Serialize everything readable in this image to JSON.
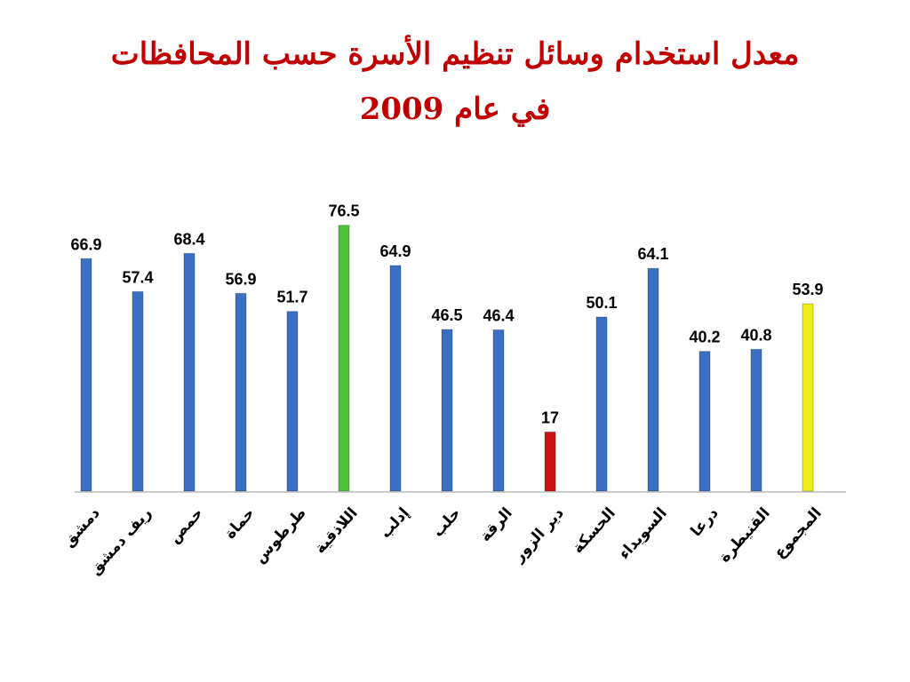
{
  "chart_data": {
    "type": "bar",
    "title": [
      "معدل استخدام وسائل تنظيم الأسرة حسب المحافظات",
      "في عام 2009"
    ],
    "categories": [
      "دمشق",
      "ريف دمشق",
      "حمص",
      "حماة",
      "طرطوس",
      "اللاذقية",
      "إدلب",
      "حلب",
      "الرقة",
      "دير الزور",
      "الحسكة",
      "السويداء",
      "درعا",
      "القنيطرة",
      "المجموع"
    ],
    "values": [
      66.9,
      57.4,
      68.4,
      56.9,
      51.7,
      76.5,
      64.9,
      46.5,
      46.4,
      17,
      50.1,
      64.1,
      40.2,
      40.8,
      53.9
    ],
    "colors": [
      "#3a6fc4",
      "#3a6fc4",
      "#3a6fc4",
      "#3a6fc4",
      "#3a6fc4",
      "#4ec23a",
      "#3a6fc4",
      "#3a6fc4",
      "#3a6fc4",
      "#cc1111",
      "#3a6fc4",
      "#3a6fc4",
      "#3a6fc4",
      "#3a6fc4",
      "#eeee1a"
    ],
    "ylim": [
      0,
      80
    ]
  }
}
